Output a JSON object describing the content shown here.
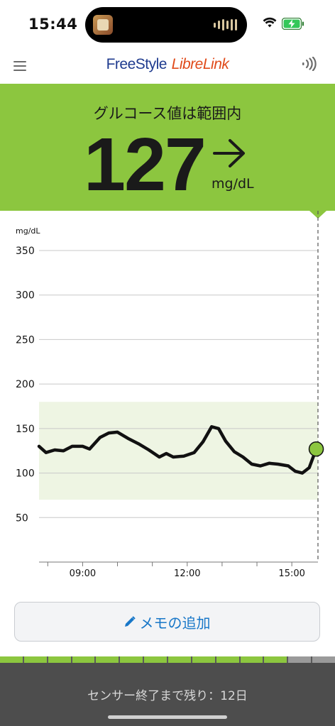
{
  "status_bar": {
    "time": "15:44",
    "icons": [
      "app-thumbnail-icon",
      "audio-wave-icon",
      "wifi-icon",
      "battery-charging-icon"
    ]
  },
  "header": {
    "logo_part1": "FreeStyle",
    "logo_part2": "LibreLink",
    "menu_icon": "hamburger-menu-icon",
    "nfc_icon": "nfc-scan-icon"
  },
  "banner": {
    "status": "グルコース値は範囲内",
    "value": "127",
    "unit": "mg/dL",
    "trend_icon": "arrow-right-icon",
    "color": "#8cc63f"
  },
  "chart_data": {
    "type": "line",
    "ylabel": "mg/dL",
    "ylim": [
      0,
      350
    ],
    "yticks": [
      "50",
      "100",
      "150",
      "200",
      "250",
      "300",
      "350"
    ],
    "x_tick_labels": [
      "09:00",
      "12:00",
      "15:00"
    ],
    "xlim_hours": [
      7.75,
      15.75
    ],
    "target_range": [
      70,
      180
    ],
    "target_range_color": "#eef5e3",
    "line_color": "#111111",
    "current_point_color": "#8cc63f",
    "series": [
      {
        "x": [
          7.75,
          7.95,
          8.2,
          8.45,
          8.7,
          9.0,
          9.2,
          9.5,
          9.75,
          10.0,
          10.3,
          10.6,
          10.9,
          11.2,
          11.4,
          11.6,
          11.9,
          12.2,
          12.45,
          12.7,
          12.9,
          13.1,
          13.35,
          13.6,
          13.85,
          14.1,
          14.35,
          14.6,
          14.9,
          15.1,
          15.3,
          15.5,
          15.7
        ],
        "y": [
          130,
          123,
          126,
          125,
          130,
          130,
          127,
          140,
          145,
          146,
          139,
          133,
          126,
          118,
          122,
          118,
          119,
          123,
          135,
          152,
          150,
          136,
          124,
          118,
          110,
          108,
          111,
          110,
          108,
          102,
          100,
          106,
          127
        ]
      }
    ],
    "grid": true
  },
  "memo_button": {
    "label": "メモの追加",
    "icon": "pencil-icon"
  },
  "sensor": {
    "remaining_text": "センサー終了まで残り：12日",
    "segments_total": 14,
    "segments_used": 12
  }
}
